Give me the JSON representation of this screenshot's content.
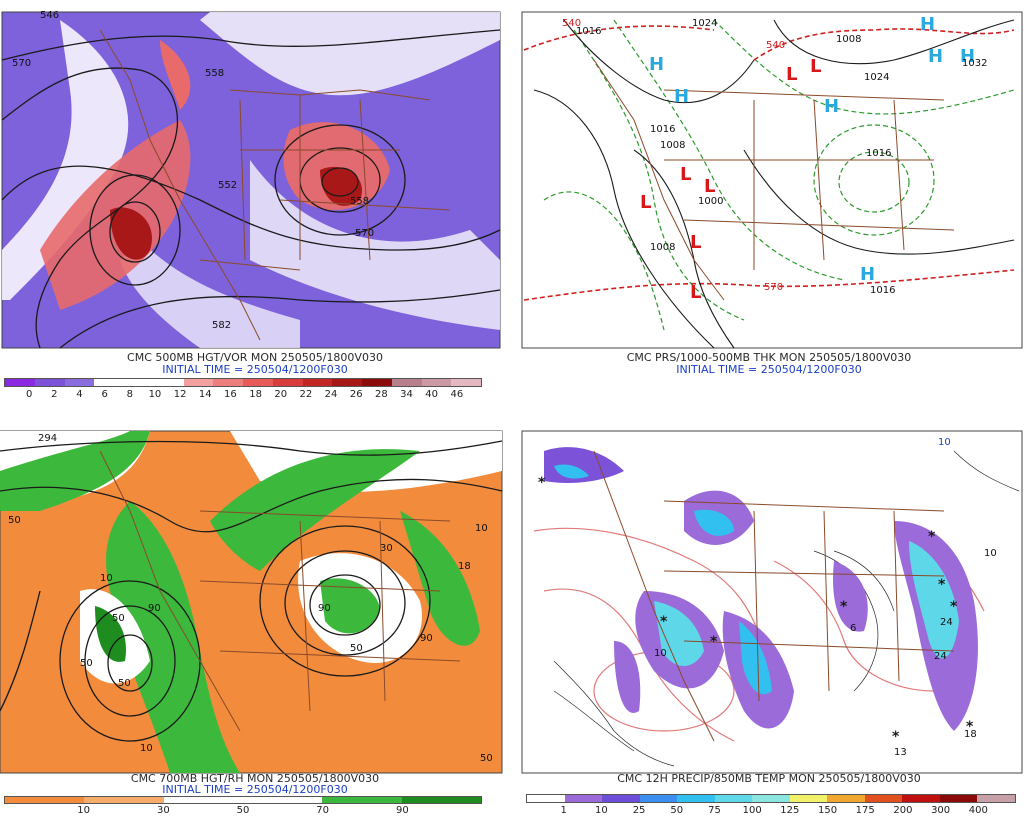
{
  "panels": [
    {
      "caption": "CMC 500MB HGT/VOR MON 250505/1800V030",
      "init": "INITIAL TIME = 250504/1200F030",
      "legend": {
        "colors": [
          "#8a2be2",
          "#7b52d8",
          "#8a6ee0",
          "#ffffff",
          "#ffffff",
          "#ffffff",
          "#f2a0a0",
          "#ee7d7d",
          "#e85a5a",
          "#d83c3c",
          "#c42626",
          "#a81818",
          "#8c0c0c",
          "#b8808c",
          "#cc9aa4",
          "#e4b8c0"
        ],
        "ticks": [
          "0",
          "2",
          "4",
          "6",
          "8",
          "10",
          "12",
          "14",
          "16",
          "18",
          "20",
          "22",
          "24",
          "26",
          "28",
          "34",
          "40",
          "46"
        ]
      },
      "map_labels": [
        "546",
        "570",
        "558",
        "552",
        "570",
        "582",
        "558"
      ]
    },
    {
      "caption": "CMC PRS/1000-500MB THK MON 250505/1800V030",
      "init": "INITIAL TIME = 250504/1200F030",
      "map_labels": [
        "540",
        "1016",
        "1024",
        "540",
        "1008",
        "1024",
        "1016",
        "1008",
        "1000",
        "1008",
        "1016",
        "570",
        "1016",
        "1032"
      ],
      "highs": [
        "H",
        "H",
        "H",
        "H",
        "H",
        "H",
        "H"
      ],
      "lows": [
        "L",
        "L",
        "L",
        "L",
        "L",
        "L",
        "L"
      ]
    },
    {
      "caption": "CMC 700MB HGT/RH MON 250505/1800V030",
      "init": "INITIAL TIME = 250504/1200F030",
      "legend": {
        "colors": [
          "#f28c3c",
          "#f6ac6a",
          "#ffffff",
          "#ffffff",
          "#3cb83c",
          "#1e8c1e"
        ],
        "ticks": [
          "10",
          "30",
          "50",
          "70",
          "90"
        ]
      },
      "map_labels": [
        "294",
        "50",
        "10",
        "50",
        "50",
        "90",
        "50",
        "10",
        "90",
        "50",
        "90",
        "30",
        "10",
        "18",
        "50"
      ]
    },
    {
      "caption": "CMC 12H PRECIP/850MB TEMP MON 250505/1800V030",
      "legend": {
        "colors": [
          "#ffffff",
          "#9b6bd9",
          "#6d4ed8",
          "#3a8ff0",
          "#32c0f0",
          "#5ed8e8",
          "#8ce6e0",
          "#f2f26a",
          "#f0a830",
          "#e25020",
          "#c01010",
          "#8a0a0a",
          "#c8a0a8"
        ],
        "ticks": [
          "1",
          "10",
          "25",
          "50",
          "75",
          "100",
          "125",
          "150",
          "175",
          "200",
          "300",
          "400"
        ]
      },
      "map_labels": [
        "10",
        "6",
        "24",
        "13",
        "18",
        "10",
        "24",
        "10"
      ]
    }
  ]
}
